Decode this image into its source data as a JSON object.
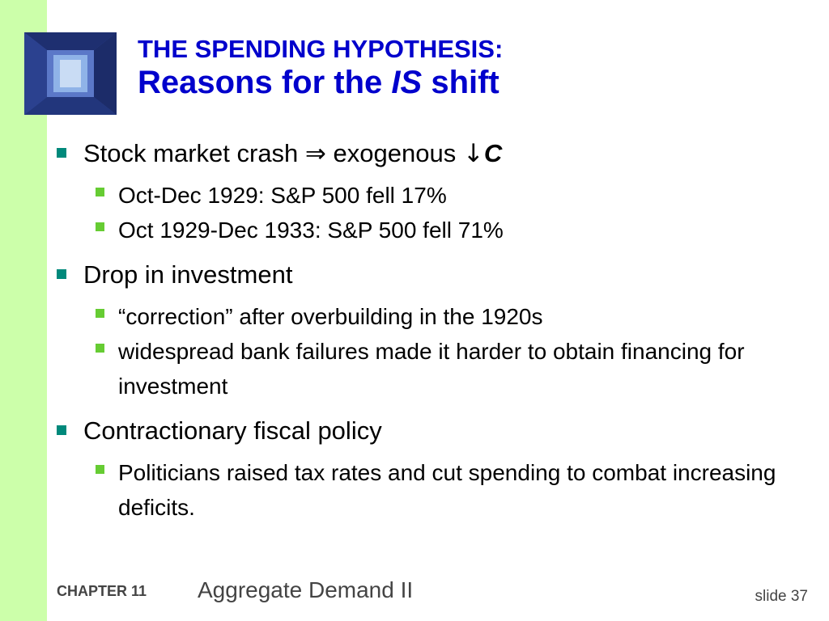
{
  "title": {
    "line1": "THE SPENDING HYPOTHESIS:",
    "line2_pre": "Reasons for the ",
    "line2_italic": "IS",
    "line2_post": " shift"
  },
  "bullets": {
    "b1": {
      "text": "Stock market crash ",
      "arrow": "⇒",
      "text2": " exogenous ",
      "down_arrow": "↓",
      "var": "C",
      "subs": [
        "Oct-Dec 1929:  S&P 500 fell 17%",
        "Oct 1929-Dec 1933:  S&P 500 fell 71%"
      ]
    },
    "b2": {
      "text": "Drop in investment",
      "subs": [
        "“correction” after overbuilding in the 1920s",
        "widespread bank failures made it harder to obtain financing for investment"
      ]
    },
    "b3": {
      "text": "Contractionary fiscal policy",
      "subs": [
        "Politicians raised tax rates and cut spending to combat increasing deficits."
      ]
    }
  },
  "footer": {
    "chapter": "CHAPTER 11",
    "title": "Aggregate Demand II",
    "slide": "slide 37"
  },
  "colors": {
    "title": "#0000cc",
    "side_bar": "#ccffaa",
    "bullet_l1": "#00897b",
    "bullet_l2": "#66cc33"
  }
}
